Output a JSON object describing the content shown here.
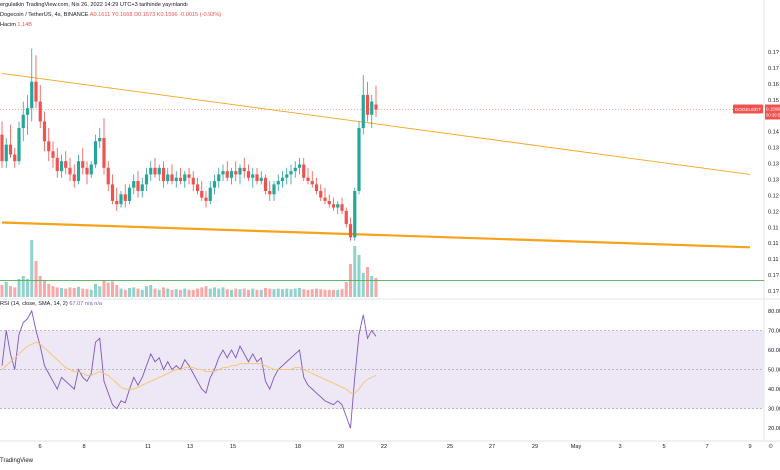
{
  "header": {
    "published": "ergulatkin TradingView.com, Nis 26, 2022 14:29 UTC+3 tarihinde yayınlandı",
    "symbol": "Dogecoin / TetherUS, 4s, BINANCE",
    "ohlc_open": "A0.1611",
    "ohlc_high": "Y0.1668",
    "ohlc_low": "D0.1573",
    "ohlc_close": "K0.1596",
    "ohlc_change": "-0.0015 (-0.93%)",
    "volume_label": "Hacim",
    "volume_value": "1.14B",
    "rsi_label": "RSI (14, close, SMA, 14, 2)",
    "rsi_value": "67.07",
    "rsi_na": "n/a n/a"
  },
  "price_tag": {
    "symbol": "DOGEUSDT",
    "value": "0.1596",
    "countdown": "00:30:59"
  },
  "footer": {
    "logo": "TradingView"
  },
  "colors": {
    "up": "#26a69a",
    "down": "#ef5350",
    "rsi": "#7e57c2",
    "rsi_ma": "#f5c56b",
    "trend": "#f7a21b",
    "rsi_band": "#ede7f6",
    "green_line": "#4caf50"
  },
  "chart_data": {
    "type": "candlestick",
    "instrument": "DOGEUSDT",
    "timeframe": "4h",
    "price_axis_labels": [
      "0.1?",
      "0.17",
      "0.16",
      "0.15",
      "0.15",
      "0.14",
      "0.13",
      "0.13",
      "0.13",
      "0.12",
      "0.12",
      "0.11",
      "0.11",
      "0.11",
      "0.1?",
      "0.1?"
    ],
    "rsi_axis_labels": [
      "80.00",
      "70.00",
      "60.00",
      "50.00",
      "40.00",
      "30.00",
      "20.00"
    ],
    "x_tick_labels": [
      "6",
      "8",
      "11",
      "13",
      "15",
      "18",
      "20",
      "22",
      "25",
      "27",
      "29",
      "May",
      "3",
      "5",
      "7",
      "9"
    ],
    "price_range": [
      0.103,
      0.183
    ],
    "rsi_range": [
      15,
      82
    ],
    "rsi_levels": [
      70,
      50,
      30
    ],
    "candles": [
      {
        "o": 0.152,
        "h": 0.156,
        "l": 0.142,
        "c": 0.144
      },
      {
        "o": 0.144,
        "h": 0.151,
        "l": 0.142,
        "c": 0.149
      },
      {
        "o": 0.149,
        "h": 0.155,
        "l": 0.145,
        "c": 0.146
      },
      {
        "o": 0.146,
        "h": 0.148,
        "l": 0.142,
        "c": 0.144
      },
      {
        "o": 0.144,
        "h": 0.156,
        "l": 0.143,
        "c": 0.154
      },
      {
        "o": 0.154,
        "h": 0.162,
        "l": 0.15,
        "c": 0.158
      },
      {
        "o": 0.158,
        "h": 0.164,
        "l": 0.152,
        "c": 0.16
      },
      {
        "o": 0.16,
        "h": 0.178,
        "l": 0.156,
        "c": 0.168
      },
      {
        "o": 0.168,
        "h": 0.176,
        "l": 0.16,
        "c": 0.162
      },
      {
        "o": 0.162,
        "h": 0.167,
        "l": 0.154,
        "c": 0.156
      },
      {
        "o": 0.156,
        "h": 0.159,
        "l": 0.147,
        "c": 0.15
      },
      {
        "o": 0.15,
        "h": 0.154,
        "l": 0.144,
        "c": 0.147
      },
      {
        "o": 0.147,
        "h": 0.15,
        "l": 0.142,
        "c": 0.145
      },
      {
        "o": 0.145,
        "h": 0.148,
        "l": 0.139,
        "c": 0.141
      },
      {
        "o": 0.141,
        "h": 0.146,
        "l": 0.139,
        "c": 0.144
      },
      {
        "o": 0.144,
        "h": 0.147,
        "l": 0.14,
        "c": 0.142
      },
      {
        "o": 0.142,
        "h": 0.145,
        "l": 0.138,
        "c": 0.14
      },
      {
        "o": 0.14,
        "h": 0.143,
        "l": 0.136,
        "c": 0.138
      },
      {
        "o": 0.138,
        "h": 0.146,
        "l": 0.137,
        "c": 0.144
      },
      {
        "o": 0.144,
        "h": 0.148,
        "l": 0.14,
        "c": 0.142
      },
      {
        "o": 0.142,
        "h": 0.144,
        "l": 0.137,
        "c": 0.14
      },
      {
        "o": 0.14,
        "h": 0.144,
        "l": 0.139,
        "c": 0.143
      },
      {
        "o": 0.143,
        "h": 0.152,
        "l": 0.142,
        "c": 0.15
      },
      {
        "o": 0.15,
        "h": 0.154,
        "l": 0.148,
        "c": 0.151
      },
      {
        "o": 0.151,
        "h": 0.157,
        "l": 0.14,
        "c": 0.142
      },
      {
        "o": 0.142,
        "h": 0.144,
        "l": 0.135,
        "c": 0.137
      },
      {
        "o": 0.137,
        "h": 0.14,
        "l": 0.131,
        "c": 0.132
      },
      {
        "o": 0.132,
        "h": 0.136,
        "l": 0.129,
        "c": 0.131
      },
      {
        "o": 0.131,
        "h": 0.135,
        "l": 0.13,
        "c": 0.134
      },
      {
        "o": 0.134,
        "h": 0.137,
        "l": 0.13,
        "c": 0.132
      },
      {
        "o": 0.132,
        "h": 0.137,
        "l": 0.131,
        "c": 0.136
      },
      {
        "o": 0.136,
        "h": 0.14,
        "l": 0.134,
        "c": 0.138
      },
      {
        "o": 0.138,
        "h": 0.141,
        "l": 0.133,
        "c": 0.135
      },
      {
        "o": 0.135,
        "h": 0.139,
        "l": 0.133,
        "c": 0.137
      },
      {
        "o": 0.137,
        "h": 0.142,
        "l": 0.135,
        "c": 0.14
      },
      {
        "o": 0.14,
        "h": 0.144,
        "l": 0.138,
        "c": 0.142
      },
      {
        "o": 0.142,
        "h": 0.145,
        "l": 0.139,
        "c": 0.14
      },
      {
        "o": 0.14,
        "h": 0.143,
        "l": 0.138,
        "c": 0.142
      },
      {
        "o": 0.142,
        "h": 0.144,
        "l": 0.136,
        "c": 0.138
      },
      {
        "o": 0.138,
        "h": 0.142,
        "l": 0.137,
        "c": 0.14
      },
      {
        "o": 0.14,
        "h": 0.143,
        "l": 0.137,
        "c": 0.138
      },
      {
        "o": 0.138,
        "h": 0.141,
        "l": 0.136,
        "c": 0.139
      },
      {
        "o": 0.139,
        "h": 0.142,
        "l": 0.137,
        "c": 0.138
      },
      {
        "o": 0.138,
        "h": 0.141,
        "l": 0.136,
        "c": 0.14
      },
      {
        "o": 0.14,
        "h": 0.142,
        "l": 0.137,
        "c": 0.139
      },
      {
        "o": 0.139,
        "h": 0.141,
        "l": 0.135,
        "c": 0.137
      },
      {
        "o": 0.137,
        "h": 0.139,
        "l": 0.134,
        "c": 0.135
      },
      {
        "o": 0.135,
        "h": 0.138,
        "l": 0.132,
        "c": 0.133
      },
      {
        "o": 0.133,
        "h": 0.135,
        "l": 0.13,
        "c": 0.132
      },
      {
        "o": 0.132,
        "h": 0.138,
        "l": 0.131,
        "c": 0.136
      },
      {
        "o": 0.136,
        "h": 0.14,
        "l": 0.134,
        "c": 0.138
      },
      {
        "o": 0.138,
        "h": 0.142,
        "l": 0.136,
        "c": 0.14
      },
      {
        "o": 0.14,
        "h": 0.143,
        "l": 0.138,
        "c": 0.141
      },
      {
        "o": 0.141,
        "h": 0.144,
        "l": 0.138,
        "c": 0.139
      },
      {
        "o": 0.139,
        "h": 0.142,
        "l": 0.137,
        "c": 0.141
      },
      {
        "o": 0.141,
        "h": 0.144,
        "l": 0.138,
        "c": 0.14
      },
      {
        "o": 0.14,
        "h": 0.143,
        "l": 0.137,
        "c": 0.142
      },
      {
        "o": 0.142,
        "h": 0.145,
        "l": 0.139,
        "c": 0.141
      },
      {
        "o": 0.141,
        "h": 0.143,
        "l": 0.138,
        "c": 0.139
      },
      {
        "o": 0.139,
        "h": 0.142,
        "l": 0.136,
        "c": 0.14
      },
      {
        "o": 0.14,
        "h": 0.142,
        "l": 0.137,
        "c": 0.138
      },
      {
        "o": 0.138,
        "h": 0.141,
        "l": 0.137,
        "c": 0.139
      },
      {
        "o": 0.139,
        "h": 0.14,
        "l": 0.134,
        "c": 0.135
      },
      {
        "o": 0.135,
        "h": 0.138,
        "l": 0.132,
        "c": 0.134
      },
      {
        "o": 0.134,
        "h": 0.138,
        "l": 0.132,
        "c": 0.137
      },
      {
        "o": 0.137,
        "h": 0.14,
        "l": 0.135,
        "c": 0.138
      },
      {
        "o": 0.138,
        "h": 0.141,
        "l": 0.136,
        "c": 0.139
      },
      {
        "o": 0.139,
        "h": 0.142,
        "l": 0.137,
        "c": 0.14
      },
      {
        "o": 0.14,
        "h": 0.143,
        "l": 0.137,
        "c": 0.141
      },
      {
        "o": 0.141,
        "h": 0.144,
        "l": 0.139,
        "c": 0.142
      },
      {
        "o": 0.142,
        "h": 0.145,
        "l": 0.14,
        "c": 0.143
      },
      {
        "o": 0.143,
        "h": 0.145,
        "l": 0.138,
        "c": 0.139
      },
      {
        "o": 0.139,
        "h": 0.142,
        "l": 0.137,
        "c": 0.138
      },
      {
        "o": 0.138,
        "h": 0.141,
        "l": 0.136,
        "c": 0.137
      },
      {
        "o": 0.137,
        "h": 0.139,
        "l": 0.134,
        "c": 0.135
      },
      {
        "o": 0.135,
        "h": 0.137,
        "l": 0.132,
        "c": 0.133
      },
      {
        "o": 0.133,
        "h": 0.136,
        "l": 0.131,
        "c": 0.132
      },
      {
        "o": 0.132,
        "h": 0.134,
        "l": 0.13,
        "c": 0.131
      },
      {
        "o": 0.131,
        "h": 0.133,
        "l": 0.129,
        "c": 0.13
      },
      {
        "o": 0.13,
        "h": 0.132,
        "l": 0.128,
        "c": 0.131
      },
      {
        "o": 0.131,
        "h": 0.133,
        "l": 0.128,
        "c": 0.129
      },
      {
        "o": 0.129,
        "h": 0.13,
        "l": 0.124,
        "c": 0.125
      },
      {
        "o": 0.125,
        "h": 0.127,
        "l": 0.12,
        "c": 0.121
      },
      {
        "o": 0.121,
        "h": 0.136,
        "l": 0.12,
        "c": 0.135
      },
      {
        "o": 0.135,
        "h": 0.156,
        "l": 0.134,
        "c": 0.154
      },
      {
        "o": 0.154,
        "h": 0.17,
        "l": 0.152,
        "c": 0.164
      },
      {
        "o": 0.164,
        "h": 0.168,
        "l": 0.156,
        "c": 0.158
      },
      {
        "o": 0.158,
        "h": 0.164,
        "l": 0.154,
        "c": 0.162
      },
      {
        "o": 0.1611,
        "h": 0.1668,
        "l": 0.1573,
        "c": 0.1596
      }
    ],
    "volumes": [
      0.2,
      0.25,
      0.18,
      0.16,
      0.3,
      0.35,
      0.3,
      0.95,
      0.6,
      0.35,
      0.28,
      0.22,
      0.18,
      0.16,
      0.15,
      0.14,
      0.16,
      0.15,
      0.17,
      0.14,
      0.13,
      0.12,
      0.22,
      0.18,
      0.28,
      0.24,
      0.26,
      0.2,
      0.14,
      0.12,
      0.15,
      0.16,
      0.14,
      0.12,
      0.18,
      0.2,
      0.14,
      0.12,
      0.16,
      0.14,
      0.12,
      0.13,
      0.12,
      0.14,
      0.12,
      0.12,
      0.14,
      0.16,
      0.18,
      0.14,
      0.16,
      0.14,
      0.16,
      0.13,
      0.12,
      0.14,
      0.13,
      0.14,
      0.12,
      0.14,
      0.12,
      0.12,
      0.15,
      0.14,
      0.13,
      0.14,
      0.13,
      0.14,
      0.13,
      0.14,
      0.15,
      0.13,
      0.12,
      0.13,
      0.14,
      0.13,
      0.12,
      0.12,
      0.12,
      0.12,
      0.13,
      0.25,
      0.55,
      0.85,
      0.7,
      0.4,
      0.5,
      0.35,
      0.32
    ],
    "rsi": [
      52,
      70,
      58,
      50,
      68,
      74,
      76,
      80,
      70,
      62,
      52,
      48,
      44,
      40,
      46,
      44,
      42,
      40,
      50,
      46,
      44,
      48,
      64,
      66,
      44,
      38,
      32,
      30,
      34,
      33,
      40,
      46,
      42,
      46,
      52,
      58,
      54,
      56,
      50,
      54,
      50,
      52,
      50,
      55,
      52,
      48,
      44,
      40,
      38,
      46,
      50,
      56,
      60,
      56,
      60,
      56,
      62,
      58,
      54,
      58,
      54,
      56,
      44,
      40,
      46,
      50,
      52,
      54,
      56,
      58,
      60,
      46,
      42,
      40,
      38,
      36,
      34,
      33,
      32,
      34,
      32,
      26,
      20,
      46,
      68,
      78,
      66,
      70,
      67
    ],
    "rsi_ma": [
      50,
      52,
      54,
      56,
      58,
      60,
      62,
      63,
      64,
      63,
      61,
      59,
      57,
      55,
      53,
      51,
      50,
      49,
      49,
      48,
      47,
      47,
      48,
      49,
      48,
      47,
      45,
      43,
      41,
      40,
      40,
      40,
      41,
      42,
      43,
      44,
      45,
      46,
      47,
      48,
      49,
      50,
      50,
      51,
      51,
      51,
      50,
      50,
      49,
      49,
      49,
      50,
      51,
      51,
      52,
      52,
      53,
      53,
      53,
      53,
      53,
      53,
      52,
      51,
      50,
      50,
      50,
      50,
      50,
      51,
      51,
      50,
      49,
      48,
      47,
      46,
      45,
      44,
      43,
      42,
      41,
      40,
      38,
      38,
      40,
      43,
      45,
      46,
      47
    ],
    "trendlines": [
      {
        "name": "upper",
        "from": {
          "bar": 0,
          "price": 0.1705
        },
        "to": {
          "bar": 176,
          "price": 0.14
        }
      },
      {
        "name": "lower",
        "from": {
          "bar": 0,
          "price": 0.1255
        },
        "to": {
          "bar": 176,
          "price": 0.118
        }
      }
    ],
    "horizontal_lines": [
      {
        "name": "green-support",
        "price": 0.108
      },
      {
        "name": "last-price",
        "price": 0.1596
      }
    ]
  }
}
